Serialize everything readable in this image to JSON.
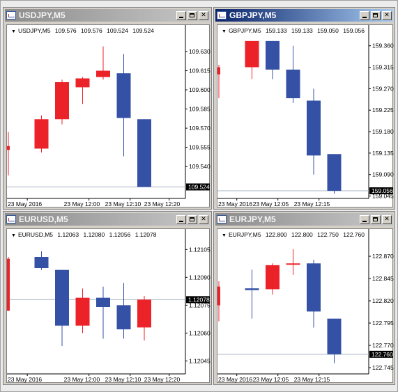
{
  "windows": [
    {
      "id": "usdjpy",
      "title": "USDJPY,M5",
      "active": false,
      "info": {
        "symbol": "USDJPY,M5",
        "open": "109.576",
        "high": "109.576",
        "low": "109.524",
        "close": "109.524"
      },
      "chart_data": {
        "type": "candlestick",
        "ylim": [
          109.515,
          109.642
        ],
        "price_ticks": [
          "109.630",
          "109.615",
          "109.600",
          "109.585",
          "109.570",
          "109.555",
          "109.540"
        ],
        "current_price": "109.524",
        "current_value": 109.524,
        "time_labels": [
          {
            "label": "23 May 2016",
            "slot": 0.65
          },
          {
            "label": "23 May 12:00",
            "slot": 3.65
          },
          {
            "label": "23 May 12:10",
            "slot": 5.65
          },
          {
            "label": "23 May 12:20",
            "slot": 7.55
          }
        ],
        "candles": [
          {
            "o": 109.553,
            "h": 109.567,
            "l": 109.533,
            "c": 109.556,
            "partial": true
          },
          {
            "o": 109.554,
            "h": 109.58,
            "l": 109.551,
            "c": 109.577
          },
          {
            "o": 109.577,
            "h": 109.608,
            "l": 109.573,
            "c": 109.606
          },
          {
            "o": 109.602,
            "h": 109.61,
            "l": 109.589,
            "c": 109.609
          },
          {
            "o": 109.61,
            "h": 109.634,
            "l": 109.608,
            "c": 109.615
          },
          {
            "o": 109.613,
            "h": 109.628,
            "l": 109.548,
            "c": 109.578
          },
          {
            "o": 109.577,
            "h": 109.577,
            "l": 109.524,
            "c": 109.524
          }
        ]
      }
    },
    {
      "id": "gbpjpy",
      "title": "GBPJPY,M5",
      "active": true,
      "info": {
        "symbol": "GBPJPY,M5",
        "open": "159.133",
        "high": "159.133",
        "low": "159.050",
        "close": "159.056"
      },
      "chart_data": {
        "type": "candlestick",
        "ylim": [
          159.04,
          159.38
        ],
        "price_ticks": [
          "159.360",
          "159.315",
          "159.270",
          "159.225",
          "159.180",
          "159.135",
          "159.090",
          "159.045"
        ],
        "current_price": "159.056",
        "current_value": 159.056,
        "time_labels": [
          {
            "label": "23 May 2016",
            "slot": 0.6
          },
          {
            "label": "23 May 12:05",
            "slot": 2.6
          },
          {
            "label": "23 May 12:15",
            "slot": 4.6
          }
        ],
        "candles": [
          {
            "o": 159.3,
            "h": 159.32,
            "l": 159.25,
            "c": 159.315,
            "partial": true
          },
          {
            "o": 159.315,
            "h": 159.37,
            "l": 159.29,
            "c": 159.37
          },
          {
            "o": 159.37,
            "h": 159.37,
            "l": 159.29,
            "c": 159.31
          },
          {
            "o": 159.31,
            "h": 159.36,
            "l": 159.24,
            "c": 159.25
          },
          {
            "o": 159.245,
            "h": 159.27,
            "l": 159.09,
            "c": 159.13
          },
          {
            "o": 159.133,
            "h": 159.133,
            "l": 159.05,
            "c": 159.056
          }
        ]
      }
    },
    {
      "id": "eurusd",
      "title": "EURUSD,M5",
      "active": false,
      "info": {
        "symbol": "EURUSD,M5",
        "open": "1.12063",
        "high": "1.12080",
        "low": "1.12056",
        "close": "1.12078"
      },
      "chart_data": {
        "type": "candlestick",
        "ylim": [
          1.12038,
          1.1211
        ],
        "price_ticks": [
          "1.12105",
          "1.12090",
          "1.12075",
          "1.12060",
          "1.12045"
        ],
        "current_price": "1.12078",
        "current_value": 1.12078,
        "time_labels": [
          {
            "label": "23 May 2016",
            "slot": 0.65
          },
          {
            "label": "23 May 12:00",
            "slot": 3.65
          },
          {
            "label": "23 May 12:10",
            "slot": 5.65
          },
          {
            "label": "23 May 12:20",
            "slot": 7.55
          }
        ],
        "candles": [
          {
            "o": 1.12072,
            "h": 1.12101,
            "l": 1.12072,
            "c": 1.121,
            "partial": true
          },
          {
            "o": 1.12101,
            "h": 1.12104,
            "l": 1.12094,
            "c": 1.12095
          },
          {
            "o": 1.12094,
            "h": 1.12094,
            "l": 1.12053,
            "c": 1.12064
          },
          {
            "o": 1.12064,
            "h": 1.12084,
            "l": 1.1206,
            "c": 1.12079
          },
          {
            "o": 1.12079,
            "h": 1.12085,
            "l": 1.12057,
            "c": 1.12074
          },
          {
            "o": 1.12075,
            "h": 1.12087,
            "l": 1.12057,
            "c": 1.12062
          },
          {
            "o": 1.12063,
            "h": 1.1208,
            "l": 1.12056,
            "c": 1.12078
          }
        ]
      }
    },
    {
      "id": "eurjpy",
      "title": "EURJPY,M5",
      "active": false,
      "info": {
        "symbol": "EURJPY,M5",
        "open": "122.800",
        "high": "122.800",
        "low": "122.750",
        "close": "122.760"
      },
      "chart_data": {
        "type": "candlestick",
        "ylim": [
          122.738,
          122.888
        ],
        "price_ticks": [
          "122.870",
          "122.845",
          "122.820",
          "122.795",
          "122.770",
          "122.745"
        ],
        "current_price": "122.760",
        "current_value": 122.76,
        "time_labels": [
          {
            "label": "23 May 2016",
            "slot": 0.6
          },
          {
            "label": "23 May 12:05",
            "slot": 2.6
          },
          {
            "label": "23 May 12:15",
            "slot": 4.6
          }
        ],
        "candles": [
          {
            "o": 122.815,
            "h": 122.842,
            "l": 122.797,
            "c": 122.836,
            "partial": true
          },
          {
            "o": 122.834,
            "h": 122.855,
            "l": 122.8,
            "c": 122.832
          },
          {
            "o": 122.833,
            "h": 122.862,
            "l": 122.827,
            "c": 122.86
          },
          {
            "o": 122.861,
            "h": 122.878,
            "l": 122.849,
            "c": 122.862
          },
          {
            "o": 122.862,
            "h": 122.866,
            "l": 122.79,
            "c": 122.808
          },
          {
            "o": 122.8,
            "h": 122.8,
            "l": 122.75,
            "c": 122.76
          }
        ]
      }
    }
  ],
  "colors": {
    "bull": "#ec2229",
    "bear": "#3451a6",
    "grid_line": "#a8b4c4",
    "axis": "#000000"
  }
}
